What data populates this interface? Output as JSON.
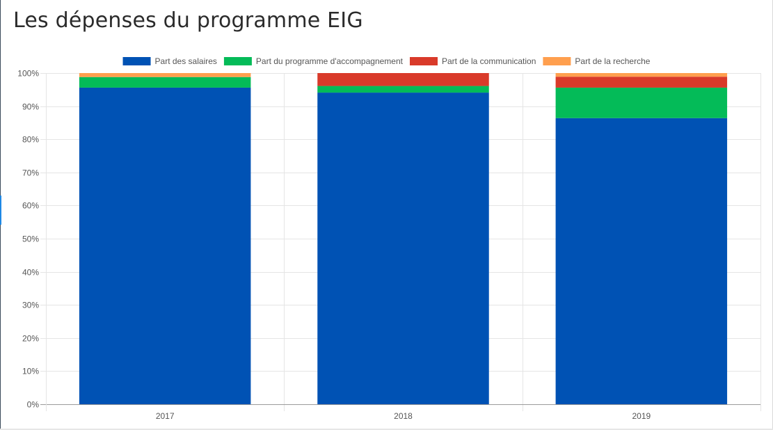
{
  "page": {
    "title": "Les dépenses du programme EIG"
  },
  "chart_data": {
    "type": "bar",
    "stacked": true,
    "categories": [
      "2017",
      "2018",
      "2019"
    ],
    "ylim": [
      0,
      100
    ],
    "ytick_step": 10,
    "ytick_suffix": "%",
    "grid": true,
    "legend_position": "top",
    "series": [
      {
        "name": "Part des salaires",
        "color": "#0052b4",
        "values": [
          95.6,
          94.1,
          86.4
        ]
      },
      {
        "name": "Part du programme d'accompagnement",
        "color": "#04bb58",
        "values": [
          3.2,
          2.0,
          9.2
        ]
      },
      {
        "name": "Part de la communication",
        "color": "#d93a2a",
        "values": [
          0.0,
          3.9,
          3.3
        ]
      },
      {
        "name": "Part de la recherche",
        "color": "#ff9f4e",
        "values": [
          1.2,
          0.0,
          1.1
        ]
      }
    ]
  }
}
